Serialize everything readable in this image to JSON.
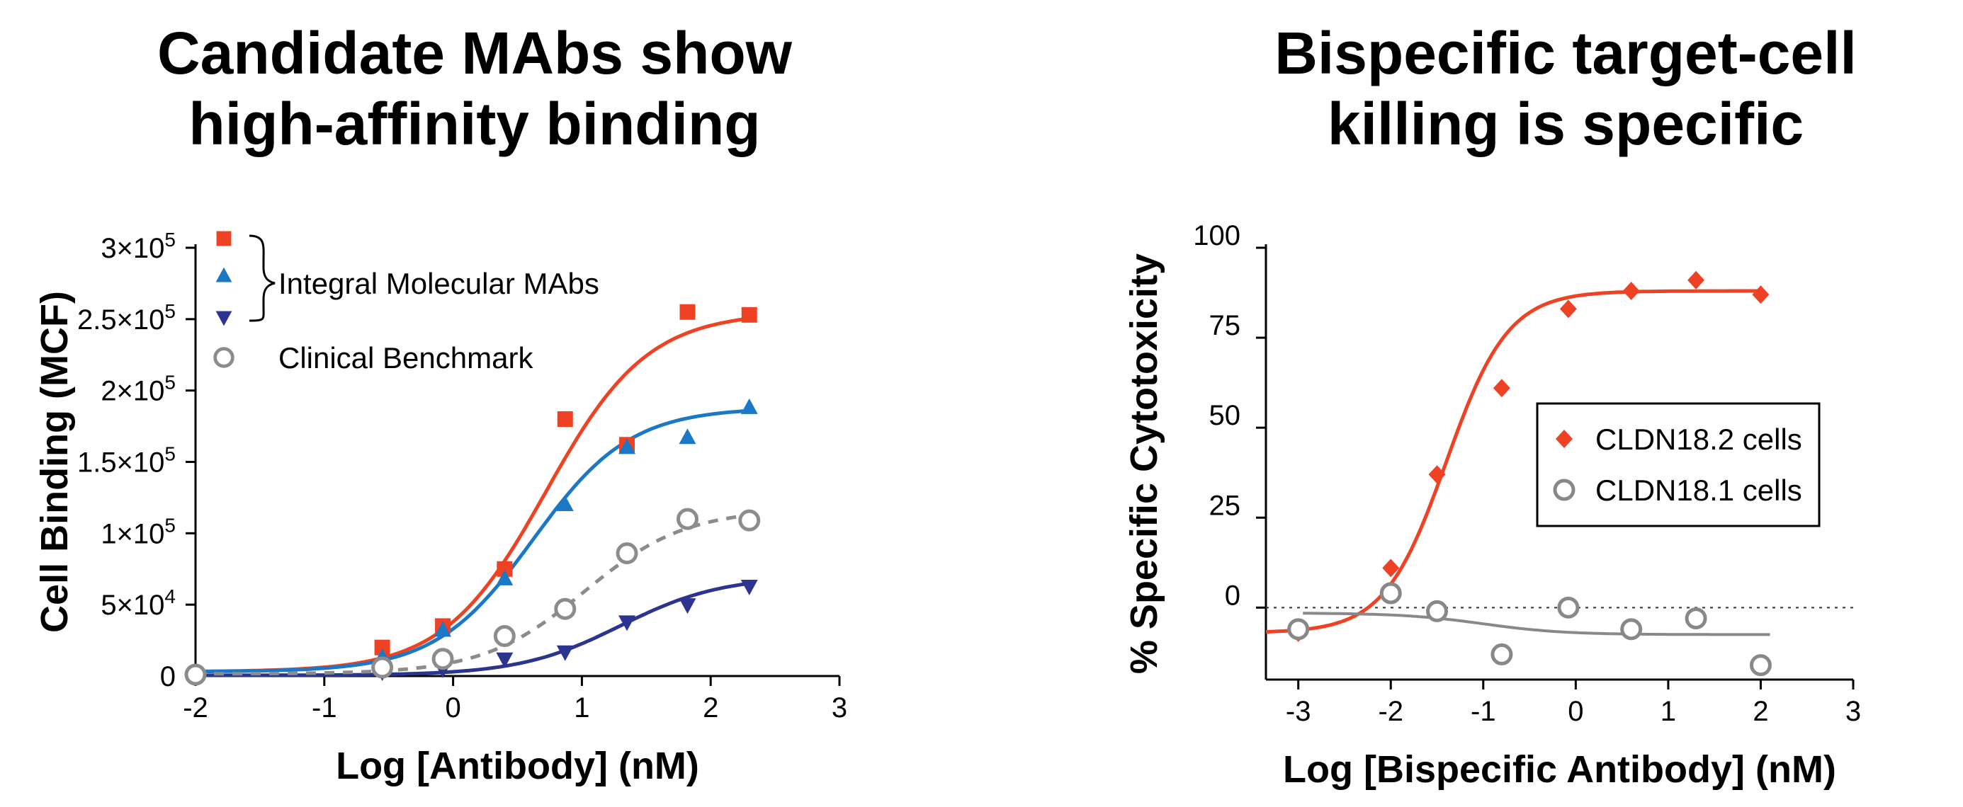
{
  "colors": {
    "red": "#ef4123",
    "blue": "#1b78c4",
    "navy": "#2b3590",
    "gray": "#8c8c8c",
    "benchmark_marker": "#a8a8a8",
    "cldn181_marker": "#888888"
  },
  "chart_data": [
    {
      "type": "scatter",
      "title": "Candidate MAbs show high-affinity binding",
      "xlabel": "Log [Antibody] (nM)",
      "ylabel": "Cell Binding (MCF)",
      "xlim": [
        -2,
        3
      ],
      "ylim": [
        0,
        300000
      ],
      "x_ticks": [
        -2,
        -1,
        0,
        1,
        2,
        3
      ],
      "x_tick_labels": [
        "-2",
        "-1",
        "0",
        "1",
        "2",
        "3"
      ],
      "y_ticks": [
        0,
        50000,
        100000,
        150000,
        200000,
        250000,
        300000
      ],
      "y_tick_bases": [
        "0",
        "5×10",
        "1×10",
        "1.5×10",
        "2×10",
        "2.5×10",
        "3×10"
      ],
      "y_tick_exps": [
        "",
        "4",
        "5",
        "5",
        "5",
        "5",
        "5"
      ],
      "legend_group_label": "Integral Molecular MAbs",
      "series": [
        {
          "name": "Integral Molecular MAb (square)",
          "marker": "square",
          "color": "red",
          "line": "solid",
          "x": [
            -2.0,
            -0.55,
            -0.08,
            0.4,
            0.87,
            1.35,
            1.82,
            2.3
          ],
          "y": [
            1000,
            20000,
            35000,
            75000,
            180000,
            162000,
            255000,
            253000
          ],
          "fit": {
            "bottom": 3000,
            "top": 255000,
            "logec50": 0.72,
            "hill": 1.1
          }
        },
        {
          "name": "Integral Molecular MAb (triangle up)",
          "marker": "triangle-up",
          "color": "blue",
          "line": "solid",
          "x": [
            -2.0,
            -0.55,
            -0.08,
            0.4,
            0.87,
            1.35,
            1.82,
            2.3
          ],
          "y": [
            1000,
            13000,
            32000,
            68000,
            120000,
            160000,
            167000,
            188000
          ],
          "fit": {
            "bottom": 3000,
            "top": 188000,
            "logec50": 0.62,
            "hill": 1.15
          }
        },
        {
          "name": "Integral Molecular MAb (triangle down)",
          "marker": "triangle-down",
          "color": "navy",
          "line": "solid",
          "x": [
            -2.0,
            -0.55,
            -0.08,
            0.4,
            0.87,
            1.35,
            1.82,
            2.3
          ],
          "y": [
            500,
            3000,
            5000,
            12000,
            17000,
            38000,
            50000,
            63000
          ],
          "fit": {
            "bottom": 500,
            "top": 70000,
            "logec50": 1.3,
            "hill": 1.1
          }
        },
        {
          "name": "Clinical Benchmark",
          "marker": "open-circle",
          "color": "gray",
          "line": "dashed",
          "x": [
            -2.0,
            -0.55,
            -0.08,
            0.4,
            0.87,
            1.35,
            1.82,
            2.3
          ],
          "y": [
            1000,
            6000,
            12000,
            28000,
            47000,
            86000,
            110000,
            109000
          ],
          "fit": {
            "bottom": 1500,
            "top": 117000,
            "logec50": 1.02,
            "hill": 1.1
          }
        }
      ],
      "legend": [
        {
          "marker": "square",
          "color": "red",
          "label": ""
        },
        {
          "marker": "triangle-up",
          "color": "blue",
          "label": ""
        },
        {
          "marker": "triangle-down",
          "color": "navy",
          "label": ""
        },
        {
          "marker": "open-circle",
          "color": "gray",
          "label": "Clinical Benchmark"
        }
      ]
    },
    {
      "type": "scatter",
      "title": "Bispecific target-cell killing is specific",
      "xlabel": "Log [Bispecific Antibody] (nM)",
      "ylabel": "% Specific Cytotoxicity",
      "xlim": [
        -3.35,
        3
      ],
      "ylim": [
        -20,
        100
      ],
      "x_ticks": [
        -3,
        -2,
        -1,
        0,
        1,
        2,
        3
      ],
      "x_tick_labels": [
        "-3",
        "-2",
        "-1",
        "0",
        "1",
        "2",
        "3"
      ],
      "y_ticks": [
        0,
        25,
        50,
        75,
        100
      ],
      "y_tick_labels": [
        "0",
        "25",
        "50",
        "75",
        "100"
      ],
      "reference_line_y": 0,
      "series": [
        {
          "name": "CLDN18.2 cells",
          "marker": "diamond",
          "color": "red",
          "line": "solid",
          "x": [
            -3.0,
            -2.0,
            -1.5,
            -0.8,
            -0.08,
            0.6,
            1.3,
            2.0
          ],
          "y": [
            -7,
            11,
            37,
            61,
            83,
            88,
            91,
            87
          ],
          "fit": {
            "bottom": -7,
            "top": 88,
            "logec50": -1.4,
            "hill": 1.3
          }
        },
        {
          "name": "CLDN18.1 cells",
          "marker": "open-circle",
          "color": "cldn181_marker",
          "line": "solid",
          "x": [
            -3.0,
            -2.0,
            -1.5,
            -0.8,
            -0.08,
            0.6,
            1.3,
            2.0
          ],
          "y": [
            -6,
            4,
            -1,
            -13,
            0,
            -6,
            -3,
            -16
          ],
          "fit": {
            "bottom": -1.5,
            "top": -7.5,
            "logec50": -1.0,
            "hill": 1.0,
            "x_range": [
              -2.95,
              2.1
            ]
          }
        }
      ],
      "legend": [
        {
          "marker": "diamond",
          "color": "red",
          "label": "CLDN18.2 cells"
        },
        {
          "marker": "open-circle",
          "color": "cldn181_marker",
          "label": "CLDN18.1 cells"
        }
      ]
    }
  ]
}
